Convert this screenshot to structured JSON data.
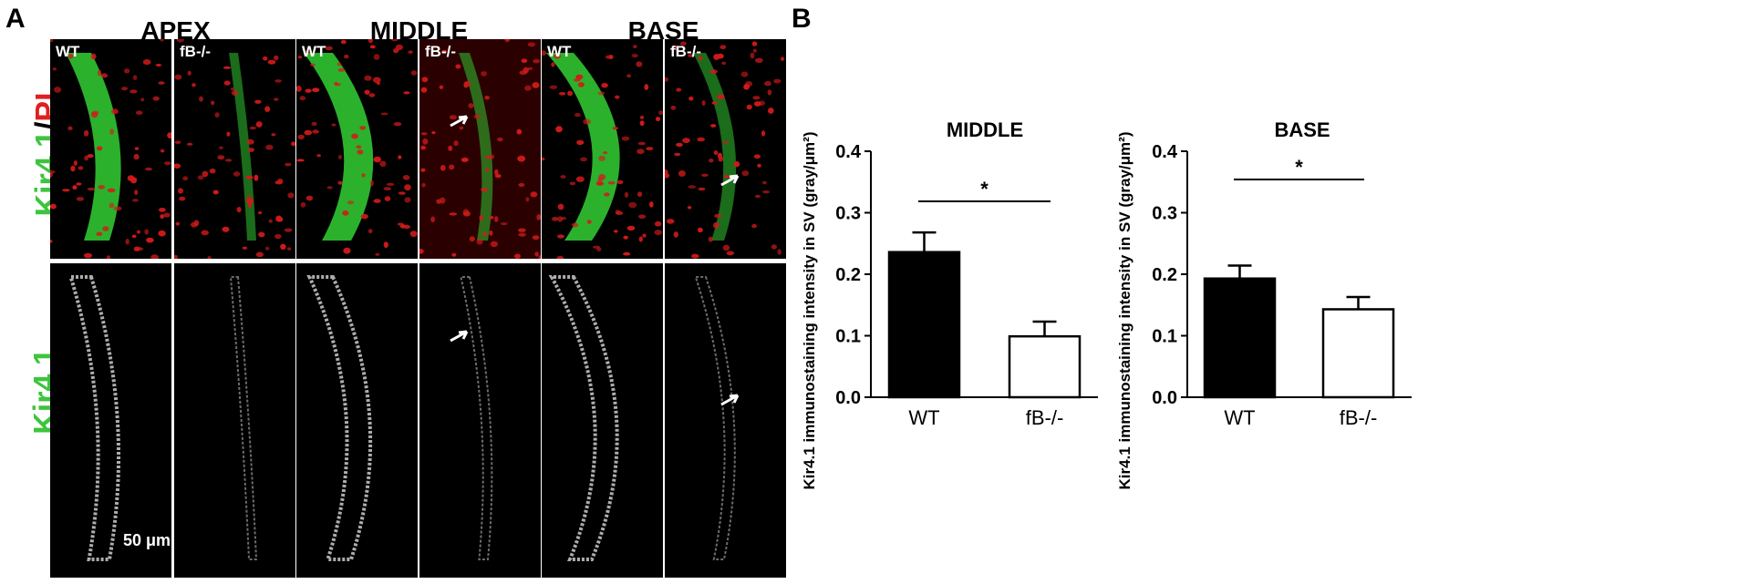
{
  "panel_a_label": "A",
  "panel_b_label": "B",
  "columns": [
    "APEX",
    "MIDDLE",
    "BASE"
  ],
  "tile_labels": [
    "WT",
    "fB-/-",
    "WT",
    "fB-/-",
    "WT",
    "fB-/-"
  ],
  "row_labels": {
    "top_green": "Kir4.1",
    "top_sep": "/",
    "top_red": "PI",
    "bottom": "Kir4.1"
  },
  "scale_bar": "50 μm",
  "colors": {
    "green": "#3ec43e",
    "red": "#e02020",
    "bar_wt": "#000000",
    "bar_ko": "#ffffff"
  },
  "chart_data": [
    {
      "type": "bar",
      "title": "MIDDLE",
      "categories": [
        "WT",
        "fB-/-"
      ],
      "values": [
        0.236,
        0.099
      ],
      "errors": [
        0.032,
        0.024
      ],
      "ylabel": "Kir4.1 immunostaining intensity in SV (gray/μm²)",
      "ylim": [
        0,
        0.4
      ],
      "yticks": [
        "0.0",
        "0.1",
        "0.2",
        "0.3",
        "0.4"
      ],
      "significance": "*"
    },
    {
      "type": "bar",
      "title": "BASE",
      "categories": [
        "WT",
        "fB-/-"
      ],
      "values": [
        0.193,
        0.143
      ],
      "errors": [
        0.021,
        0.02
      ],
      "ylabel": "Kir4.1 immunostaining intensity in SV (gray/μm²)",
      "ylim": [
        0,
        0.4
      ],
      "yticks": [
        "0.0",
        "0.1",
        "0.2",
        "0.3",
        "0.4"
      ],
      "significance": "*"
    }
  ]
}
